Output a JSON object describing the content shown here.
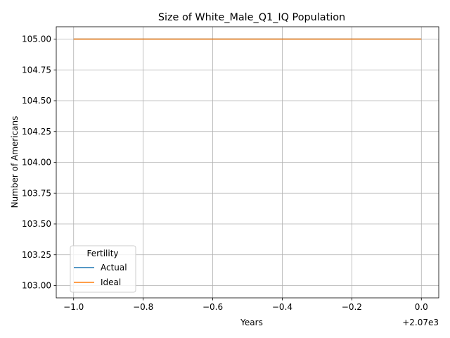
{
  "chart_data": {
    "type": "line",
    "title": "Size of White_Male_Q1_IQ Population",
    "xlabel": "Years",
    "ylabel": "Number of Americans",
    "x_offset_label": "+2.07e3",
    "x": [
      -1.0,
      0.0
    ],
    "xlim": [
      -1.05,
      0.05
    ],
    "ylim": [
      102.9,
      105.1
    ],
    "xticks": [
      -1.0,
      -0.8,
      -0.6,
      -0.4,
      -0.2,
      0.0
    ],
    "xtick_labels": [
      "−1.0",
      "−0.8",
      "−0.6",
      "−0.4",
      "−0.2",
      "0.0"
    ],
    "yticks": [
      103.0,
      103.25,
      103.5,
      103.75,
      104.0,
      104.25,
      104.5,
      104.75,
      105.0
    ],
    "ytick_labels": [
      "103.00",
      "103.25",
      "103.50",
      "103.75",
      "104.00",
      "104.25",
      "104.50",
      "104.75",
      "105.00"
    ],
    "grid": true,
    "legend": {
      "title": "Fertility",
      "placement": "lower-left"
    },
    "series": [
      {
        "name": "Actual",
        "color": "#1f77b4",
        "values": [
          105.0,
          105.0
        ]
      },
      {
        "name": "Ideal",
        "color": "#ff7f0e",
        "values": [
          105.0,
          105.0
        ]
      }
    ]
  }
}
